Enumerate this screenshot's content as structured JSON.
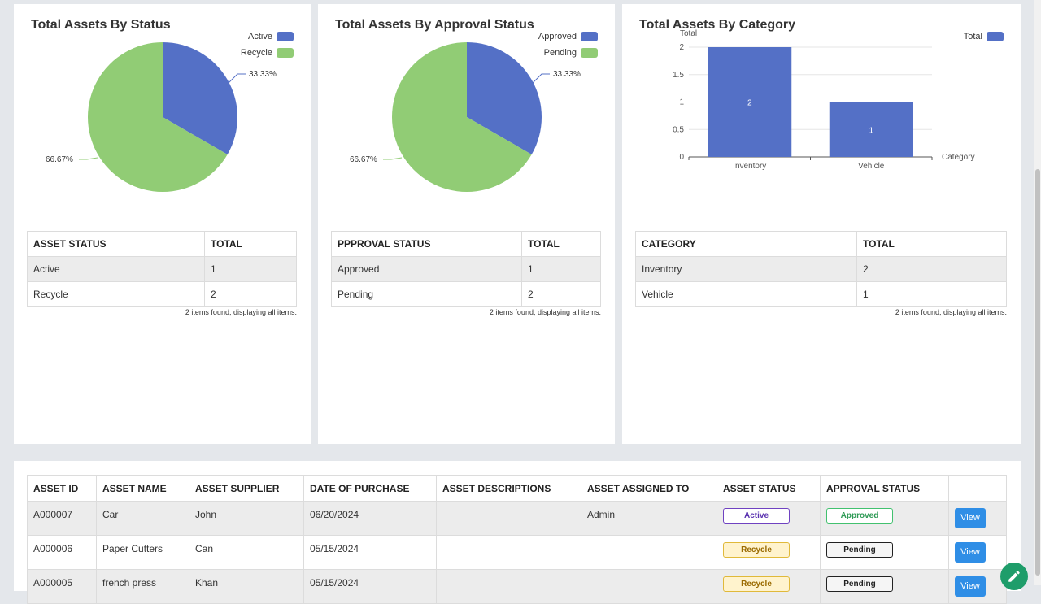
{
  "status_card": {
    "title": "Total Assets By Status",
    "legend": [
      {
        "label": "Active",
        "color": "#5470c6"
      },
      {
        "label": "Recycle",
        "color": "#91cc75"
      }
    ],
    "pct_small": "33.33%",
    "pct_large": "66.67%",
    "table": {
      "headers": [
        "ASSET STATUS",
        "TOTAL"
      ],
      "rows": [
        [
          "Active",
          "1"
        ],
        [
          "Recycle",
          "2"
        ]
      ]
    },
    "found": "2 items found, displaying all items."
  },
  "approval_card": {
    "title": "Total Assets By Approval Status",
    "legend": [
      {
        "label": "Approved",
        "color": "#5470c6"
      },
      {
        "label": "Pending",
        "color": "#91cc75"
      }
    ],
    "pct_small": "33.33%",
    "pct_large": "66.67%",
    "table": {
      "headers": [
        "PPPROVAL STATUS",
        "TOTAL"
      ],
      "rows": [
        [
          "Approved",
          "1"
        ],
        [
          "Pending",
          "2"
        ]
      ]
    },
    "found": "2 items found, displaying all items."
  },
  "category_card": {
    "title": "Total Assets By Category",
    "legend": [
      {
        "label": "Total",
        "color": "#5470c6"
      }
    ],
    "table": {
      "headers": [
        "CATEGORY",
        "TOTAL"
      ],
      "rows": [
        [
          "Inventory",
          "2"
        ],
        [
          "Vehicle",
          "1"
        ]
      ]
    },
    "found": "2 items found, displaying all items."
  },
  "chart_data": [
    {
      "type": "pie",
      "title": "Total Assets By Status",
      "categories": [
        "Active",
        "Recycle"
      ],
      "values": [
        1,
        2
      ],
      "percent_labels": [
        "33.33%",
        "66.67%"
      ],
      "legend": "top-right"
    },
    {
      "type": "pie",
      "title": "Total Assets By Approval Status",
      "categories": [
        "Approved",
        "Pending"
      ],
      "values": [
        1,
        2
      ],
      "percent_labels": [
        "33.33%",
        "66.67%"
      ],
      "legend": "top-right"
    },
    {
      "type": "bar",
      "title": "Total Assets By Category",
      "categories": [
        "Inventory",
        "Vehicle"
      ],
      "series": [
        {
          "name": "Total",
          "values": [
            2,
            1
          ]
        }
      ],
      "xlabel": "Category",
      "ylabel": "Total",
      "ylim": [
        0,
        2
      ],
      "yticks": [
        "0",
        "0.5",
        "1",
        "1.5",
        "2"
      ],
      "grid": true,
      "legend": "top-right"
    }
  ],
  "assets_table": {
    "headers": [
      "ASSET ID",
      "ASSET NAME",
      "ASSET SUPPLIER",
      "DATE OF PURCHASE",
      "ASSET DESCRIPTIONS",
      "ASSET ASSIGNED TO",
      "ASSET STATUS",
      "APPROVAL STATUS",
      ""
    ],
    "rows": [
      {
        "id": "A000007",
        "name": "Car",
        "supplier": "John",
        "date": "06/20/2024",
        "desc": "",
        "assigned": "Admin",
        "status": "Active",
        "approval": "Approved",
        "action": "View"
      },
      {
        "id": "A000006",
        "name": "Paper Cutters",
        "supplier": "Can",
        "date": "05/15/2024",
        "desc": "",
        "assigned": "",
        "status": "Recycle",
        "approval": "Pending",
        "action": "View"
      },
      {
        "id": "A000005",
        "name": "french press",
        "supplier": "Khan",
        "date": "05/15/2024",
        "desc": "",
        "assigned": "",
        "status": "Recycle",
        "approval": "Pending",
        "action": "View"
      }
    ]
  },
  "fab": {
    "icon": "pencil-icon"
  }
}
